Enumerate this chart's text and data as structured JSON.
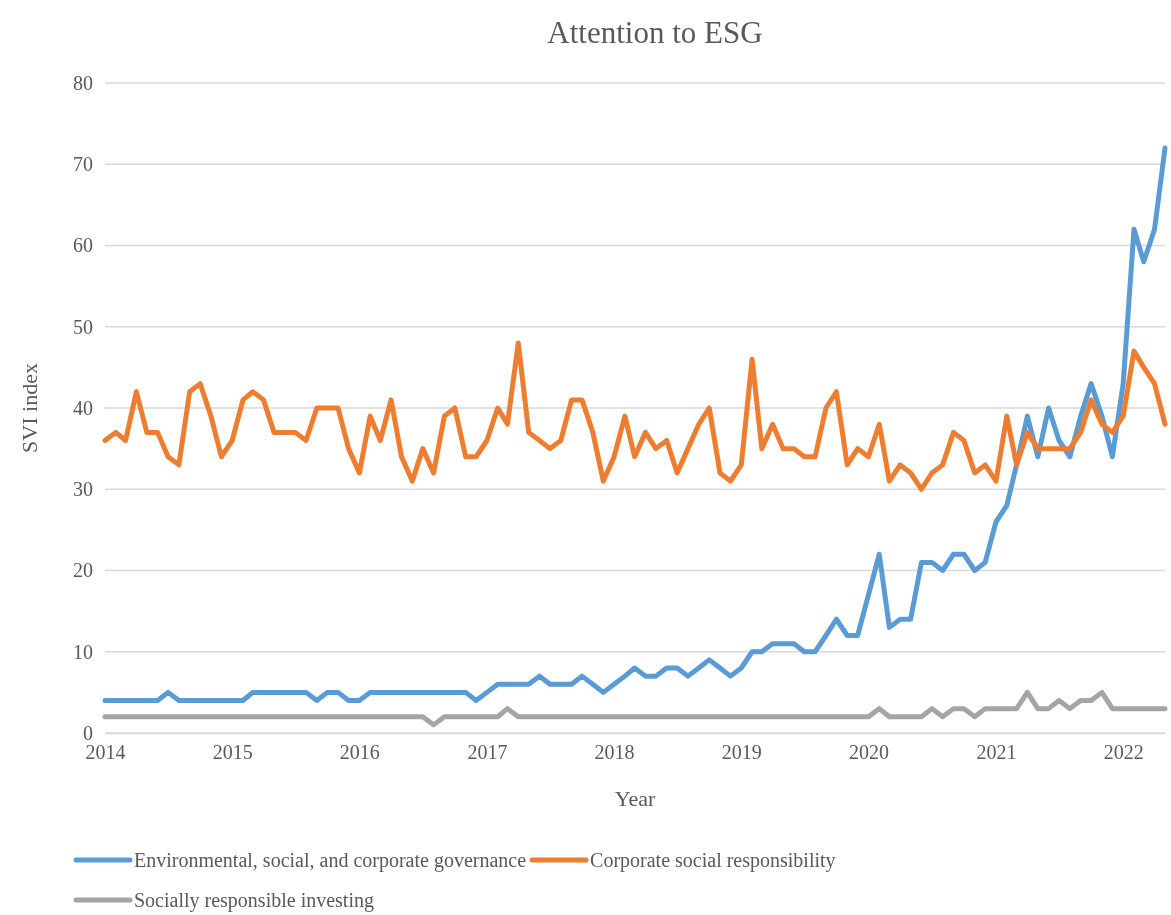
{
  "chart_data": {
    "type": "line",
    "title": "Attention to ESG",
    "xlabel": "Year",
    "ylabel": "SVI index",
    "x": [
      "2014-01",
      "2014-02",
      "2014-03",
      "2014-04",
      "2014-05",
      "2014-06",
      "2014-07",
      "2014-08",
      "2014-09",
      "2014-10",
      "2014-11",
      "2014-12",
      "2015-01",
      "2015-02",
      "2015-03",
      "2015-04",
      "2015-05",
      "2015-06",
      "2015-07",
      "2015-08",
      "2015-09",
      "2015-10",
      "2015-11",
      "2015-12",
      "2016-01",
      "2016-02",
      "2016-03",
      "2016-04",
      "2016-05",
      "2016-06",
      "2016-07",
      "2016-08",
      "2016-09",
      "2016-10",
      "2016-11",
      "2016-12",
      "2017-01",
      "2017-02",
      "2017-03",
      "2017-04",
      "2017-05",
      "2017-06",
      "2017-07",
      "2017-08",
      "2017-09",
      "2017-10",
      "2017-11",
      "2017-12",
      "2018-01",
      "2018-02",
      "2018-03",
      "2018-04",
      "2018-05",
      "2018-06",
      "2018-07",
      "2018-08",
      "2018-09",
      "2018-10",
      "2018-11",
      "2018-12",
      "2019-01",
      "2019-02",
      "2019-03",
      "2019-04",
      "2019-05",
      "2019-06",
      "2019-07",
      "2019-08",
      "2019-09",
      "2019-10",
      "2019-11",
      "2019-12",
      "2020-01",
      "2020-02",
      "2020-03",
      "2020-04",
      "2020-05",
      "2020-06",
      "2020-07",
      "2020-08",
      "2020-09",
      "2020-10",
      "2020-11",
      "2020-12",
      "2021-01",
      "2021-02",
      "2021-03",
      "2021-04",
      "2021-05",
      "2021-06",
      "2021-07",
      "2021-08",
      "2021-09",
      "2021-10",
      "2021-11",
      "2021-12",
      "2022-01",
      "2022-02",
      "2022-03",
      "2022-04",
      "2022-05"
    ],
    "series": [
      {
        "name": "Environmental, social, and corporate governance",
        "color": "#5b9bd5",
        "values": [
          4,
          4,
          4,
          4,
          4,
          4,
          5,
          4,
          4,
          4,
          4,
          4,
          4,
          4,
          5,
          5,
          5,
          5,
          5,
          5,
          4,
          5,
          5,
          4,
          4,
          5,
          5,
          5,
          5,
          5,
          5,
          5,
          5,
          5,
          5,
          4,
          5,
          6,
          6,
          6,
          6,
          7,
          6,
          6,
          6,
          7,
          6,
          5,
          6,
          7,
          8,
          7,
          7,
          8,
          8,
          7,
          8,
          9,
          8,
          7,
          8,
          10,
          10,
          11,
          11,
          11,
          10,
          10,
          12,
          14,
          12,
          12,
          17,
          22,
          13,
          14,
          14,
          21,
          21,
          20,
          22,
          22,
          20,
          21,
          26,
          28,
          33,
          39,
          34,
          40,
          36,
          34,
          39,
          43,
          39,
          34,
          43,
          62,
          58,
          62,
          72
        ]
      },
      {
        "name": "Corporate social responsibility",
        "color": "#ed7d31",
        "values": [
          36,
          37,
          36,
          42,
          37,
          37,
          34,
          33,
          42,
          43,
          39,
          34,
          36,
          41,
          42,
          41,
          37,
          37,
          37,
          36,
          40,
          40,
          40,
          35,
          32,
          39,
          36,
          41,
          34,
          31,
          35,
          32,
          39,
          40,
          34,
          34,
          36,
          40,
          38,
          48,
          37,
          36,
          35,
          36,
          41,
          41,
          37,
          31,
          34,
          39,
          34,
          37,
          35,
          36,
          32,
          35,
          38,
          40,
          32,
          31,
          33,
          46,
          35,
          38,
          35,
          35,
          34,
          34,
          40,
          42,
          33,
          35,
          34,
          38,
          31,
          33,
          32,
          30,
          32,
          33,
          37,
          36,
          32,
          33,
          31,
          39,
          33,
          37,
          35,
          35,
          35,
          35,
          37,
          41,
          38,
          37,
          39,
          47,
          45,
          43,
          38
        ]
      },
      {
        "name": "Socially responsible investing",
        "color": "#a5a5a5",
        "values": [
          2,
          2,
          2,
          2,
          2,
          2,
          2,
          2,
          2,
          2,
          2,
          2,
          2,
          2,
          2,
          2,
          2,
          2,
          2,
          2,
          2,
          2,
          2,
          2,
          2,
          2,
          2,
          2,
          2,
          2,
          2,
          1,
          2,
          2,
          2,
          2,
          2,
          2,
          3,
          2,
          2,
          2,
          2,
          2,
          2,
          2,
          2,
          2,
          2,
          2,
          2,
          2,
          2,
          2,
          2,
          2,
          2,
          2,
          2,
          2,
          2,
          2,
          2,
          2,
          2,
          2,
          2,
          2,
          2,
          2,
          2,
          2,
          2,
          3,
          2,
          2,
          2,
          2,
          3,
          2,
          3,
          3,
          2,
          3,
          3,
          3,
          3,
          5,
          3,
          3,
          4,
          3,
          4,
          4,
          5,
          3,
          3,
          3,
          3,
          3,
          3
        ]
      }
    ],
    "xlim": [
      "2014-01",
      "2022-05"
    ],
    "xticks": [
      "2014",
      "2015",
      "2016",
      "2017",
      "2018",
      "2019",
      "2020",
      "2021",
      "2022"
    ],
    "ylim": [
      0,
      80
    ],
    "yticks": [
      0,
      10,
      20,
      30,
      40,
      50,
      60,
      70,
      80
    ],
    "grid": "y",
    "legend": "bottom",
    "marker": "none",
    "line_style": "solid"
  }
}
